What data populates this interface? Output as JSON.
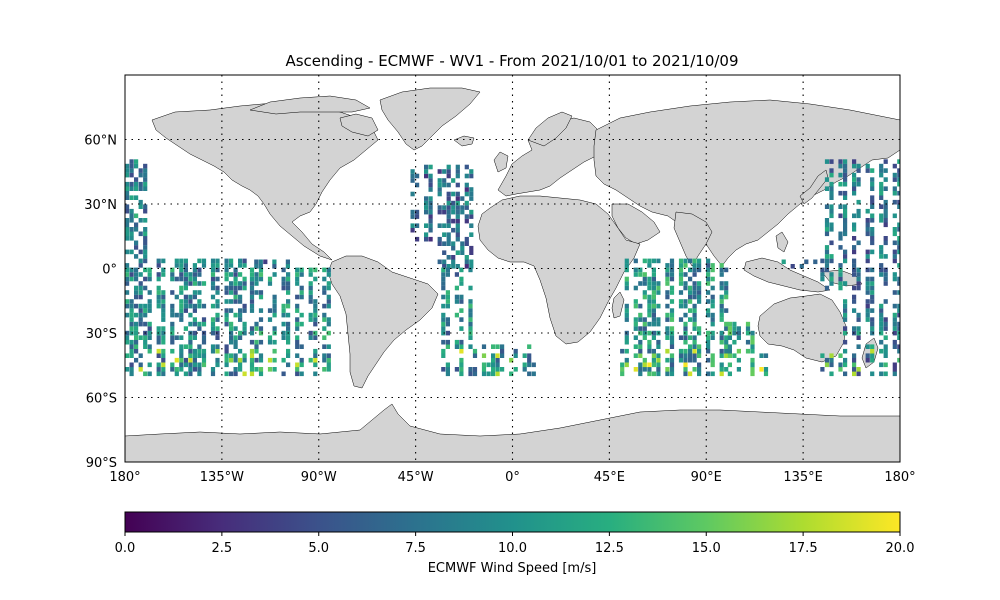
{
  "title": "Ascending - ECMWF - WV1 - From 2021/10/01 to 2021/10/09",
  "map": {
    "projection": "PlateCarree",
    "lon_range": [
      -180,
      180
    ],
    "lat_range": [
      -90,
      90
    ],
    "grid": true,
    "land_color": "#d3d3d3",
    "x_ticks": [
      {
        "value": -180,
        "label": "180°"
      },
      {
        "value": -135,
        "label": "135°W"
      },
      {
        "value": -90,
        "label": "90°W"
      },
      {
        "value": -45,
        "label": "45°W"
      },
      {
        "value": 0,
        "label": "0°"
      },
      {
        "value": 45,
        "label": "45°E"
      },
      {
        "value": 90,
        "label": "90°E"
      },
      {
        "value": 135,
        "label": "135°E"
      },
      {
        "value": 180,
        "label": "180°"
      }
    ],
    "y_ticks": [
      {
        "value": 60,
        "label": "60°N"
      },
      {
        "value": 30,
        "label": "30°N"
      },
      {
        "value": 0,
        "label": "0°"
      },
      {
        "value": -30,
        "label": "30°S"
      },
      {
        "value": -60,
        "label": "60°S"
      },
      {
        "value": -90,
        "label": "90°S"
      }
    ]
  },
  "colorbar": {
    "label": "ECMWF Wind Speed [m/s]",
    "range": [
      0,
      20
    ],
    "colormap": "viridis",
    "ticks": [
      "0.0",
      "2.5",
      "5.0",
      "7.5",
      "10.0",
      "12.5",
      "15.0",
      "17.5",
      "20.0"
    ]
  },
  "swath_data": {
    "lat_range_covered": [
      -50,
      50
    ],
    "ocean_regions": [
      "North Pacific",
      "South Pacific",
      "North Atlantic",
      "South Atlantic",
      "Indian Ocean",
      "Western Pacific"
    ]
  }
}
